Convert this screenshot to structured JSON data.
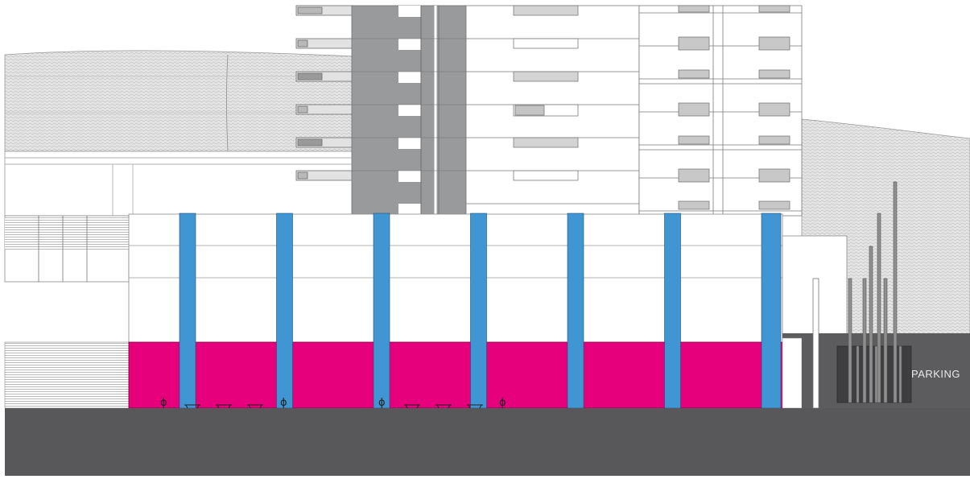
{
  "drawing": {
    "sign_text": "PARKING",
    "colors": {
      "columns": "#4095d3",
      "plinth": "#e6007b",
      "ground": "#58585a",
      "tower_core": "#999a9c",
      "roof_texture": "#d6d6d6",
      "line": "#7a7a7a",
      "sign_wall": "#5c5c5e"
    },
    "column_count": 7,
    "glyph_count": 4
  }
}
